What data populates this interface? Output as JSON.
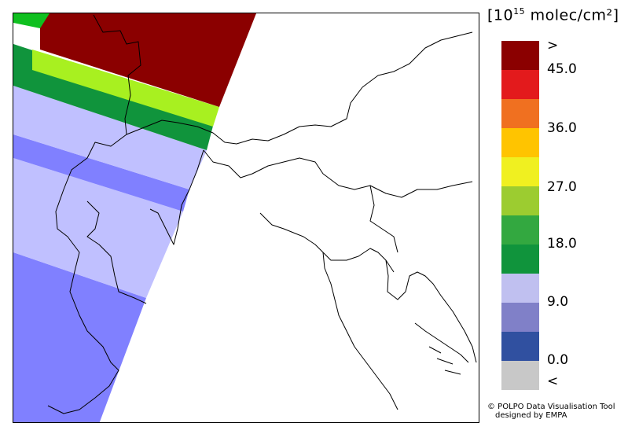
{
  "legend": {
    "units_prefix": "[10",
    "units_exp": "15",
    "units_suffix": " molec/cm²]",
    "labels": [
      ">",
      "45.0",
      "36.0",
      "27.0",
      "18.0",
      "9.0",
      "0.0",
      "<"
    ],
    "colors": [
      "#8b0000",
      "#e31a1c",
      "#f07020",
      "#ffc400",
      "#f0f020",
      "#9ccc30",
      "#33a840",
      "#10943c",
      "#c0c0f0",
      "#8080c8",
      "#3050a0",
      "#c8c8c8"
    ]
  },
  "credit": {
    "line1": "© POLPO Data Visualisation Tool",
    "line2": "designed by EMPA"
  },
  "swath_colors": {
    "dark_red": "#8b0000",
    "yellow_green": "#a8f020",
    "green": "#10943c",
    "bright_green": "#10c020",
    "light_blue": "#c0c0ff",
    "mid_blue": "#8080ff"
  }
}
